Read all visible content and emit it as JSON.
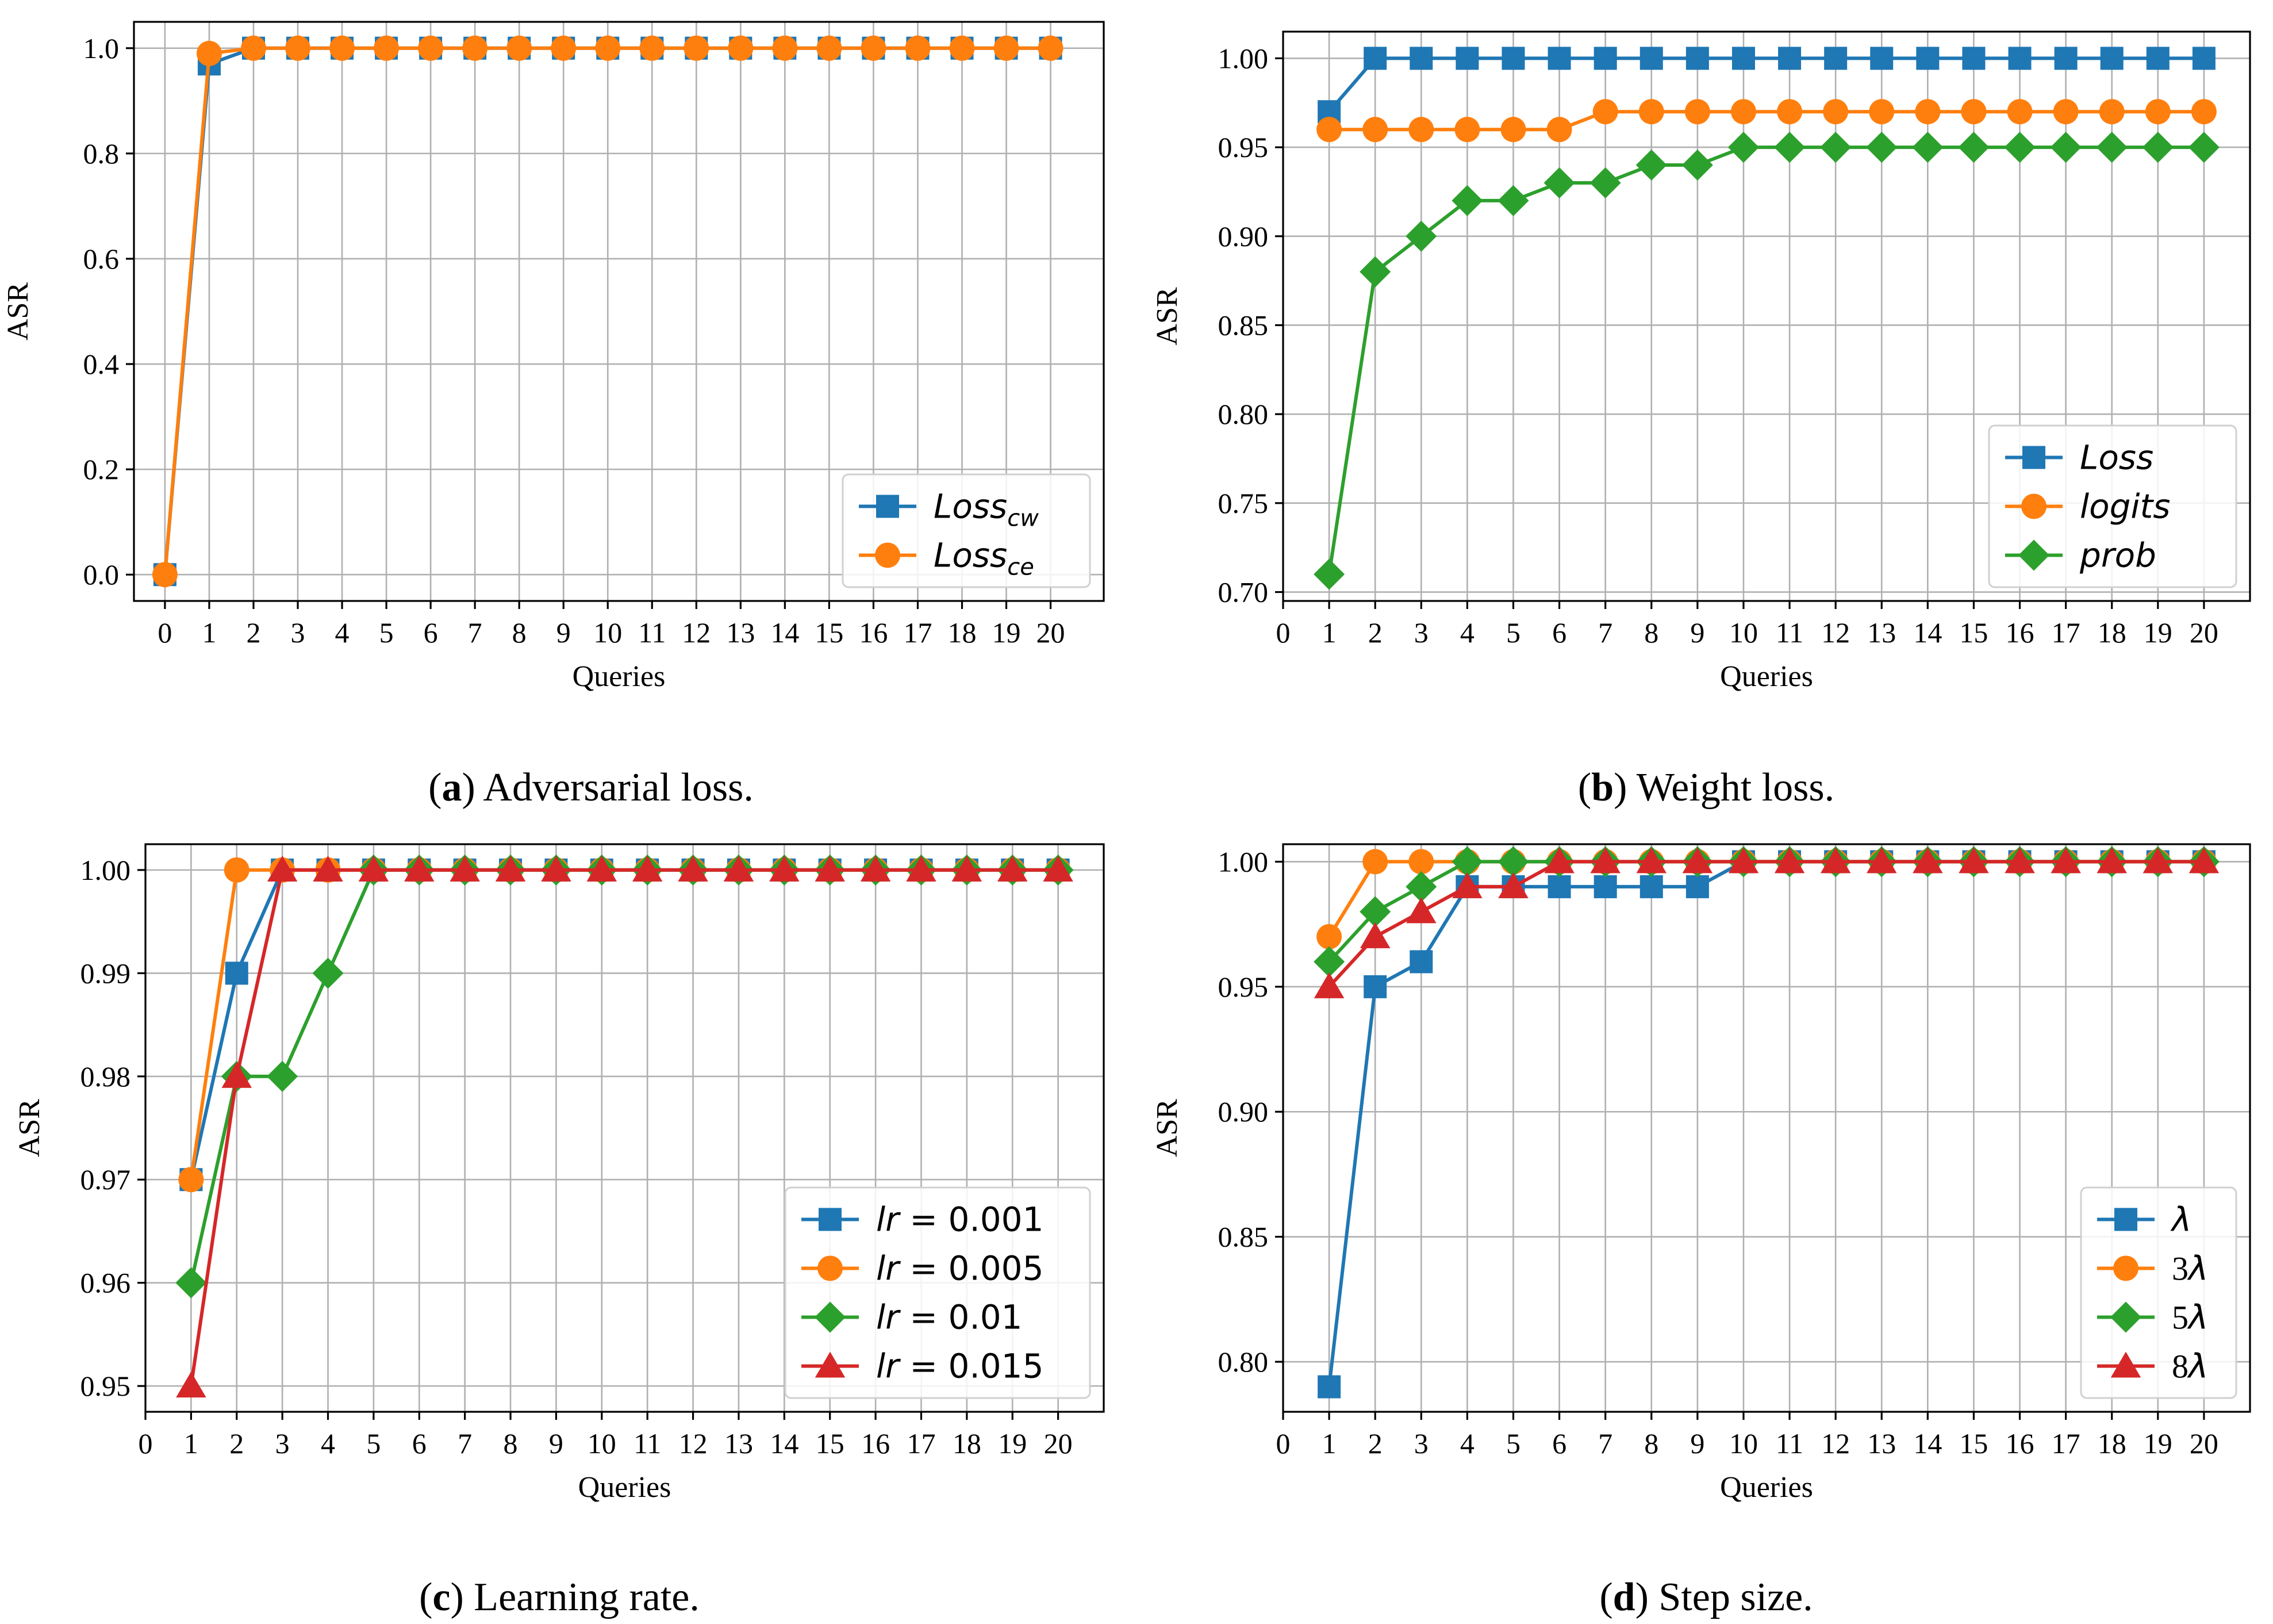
{
  "chart_data": [
    {
      "id": "a",
      "type": "line",
      "caption_letter": "a",
      "caption_text": "Adversarial loss.",
      "xlabel": "Queries",
      "ylabel": "ASR",
      "xlim": [
        -0.7,
        21.2
      ],
      "ylim": [
        -0.05,
        1.05
      ],
      "xticks": [
        0,
        1,
        2,
        3,
        4,
        5,
        6,
        7,
        8,
        9,
        10,
        11,
        12,
        13,
        14,
        15,
        16,
        17,
        18,
        19,
        20
      ],
      "yticks": [
        0.0,
        0.2,
        0.4,
        0.6,
        0.8,
        1.0
      ],
      "ytick_labels": [
        "0.0",
        "0.2",
        "0.4",
        "0.6",
        "0.8",
        "1.0"
      ],
      "x": [
        0,
        1,
        2,
        3,
        4,
        5,
        6,
        7,
        8,
        9,
        10,
        11,
        12,
        13,
        14,
        15,
        16,
        17,
        18,
        19,
        20
      ],
      "legend_position": "lower right",
      "series": [
        {
          "name": "Loss",
          "sub": "cw",
          "color": "#1f77b4",
          "marker": "square",
          "values": [
            0.0,
            0.97,
            1.0,
            1.0,
            1.0,
            1.0,
            1.0,
            1.0,
            1.0,
            1.0,
            1.0,
            1.0,
            1.0,
            1.0,
            1.0,
            1.0,
            1.0,
            1.0,
            1.0,
            1.0,
            1.0
          ]
        },
        {
          "name": "Loss",
          "sub": "ce",
          "color": "#ff7f0e",
          "marker": "circle",
          "values": [
            0.0,
            0.99,
            1.0,
            1.0,
            1.0,
            1.0,
            1.0,
            1.0,
            1.0,
            1.0,
            1.0,
            1.0,
            1.0,
            1.0,
            1.0,
            1.0,
            1.0,
            1.0,
            1.0,
            1.0,
            1.0
          ]
        }
      ]
    },
    {
      "id": "b",
      "type": "line",
      "caption_letter": "b",
      "caption_text": "Weight loss.",
      "xlabel": "Queries",
      "ylabel": "ASR",
      "xlim": [
        0,
        21
      ],
      "ylim": [
        0.695,
        1.015
      ],
      "xticks": [
        0,
        1,
        2,
        3,
        4,
        5,
        6,
        7,
        8,
        9,
        10,
        11,
        12,
        13,
        14,
        15,
        16,
        17,
        18,
        19,
        20
      ],
      "yticks": [
        0.7,
        0.75,
        0.8,
        0.85,
        0.9,
        0.95,
        1.0
      ],
      "ytick_labels": [
        "0.70",
        "0.75",
        "0.80",
        "0.85",
        "0.90",
        "0.95",
        "1.00"
      ],
      "x": [
        1,
        2,
        3,
        4,
        5,
        6,
        7,
        8,
        9,
        10,
        11,
        12,
        13,
        14,
        15,
        16,
        17,
        18,
        19,
        20
      ],
      "legend_position": "lower right",
      "series": [
        {
          "name": "Loss",
          "color": "#1f77b4",
          "marker": "square",
          "values": [
            0.97,
            1.0,
            1.0,
            1.0,
            1.0,
            1.0,
            1.0,
            1.0,
            1.0,
            1.0,
            1.0,
            1.0,
            1.0,
            1.0,
            1.0,
            1.0,
            1.0,
            1.0,
            1.0,
            1.0
          ]
        },
        {
          "name": "logits",
          "color": "#ff7f0e",
          "marker": "circle",
          "values": [
            0.96,
            0.96,
            0.96,
            0.96,
            0.96,
            0.96,
            0.97,
            0.97,
            0.97,
            0.97,
            0.97,
            0.97,
            0.97,
            0.97,
            0.97,
            0.97,
            0.97,
            0.97,
            0.97,
            0.97
          ]
        },
        {
          "name": "prob",
          "color": "#2ca02c",
          "marker": "diamond",
          "values": [
            0.71,
            0.88,
            0.9,
            0.92,
            0.92,
            0.93,
            0.93,
            0.94,
            0.94,
            0.95,
            0.95,
            0.95,
            0.95,
            0.95,
            0.95,
            0.95,
            0.95,
            0.95,
            0.95,
            0.95
          ]
        }
      ]
    },
    {
      "id": "c",
      "type": "line",
      "caption_letter": "c",
      "caption_text": "Learning rate.",
      "xlabel": "Queries",
      "ylabel": "ASR",
      "xlim": [
        0,
        21
      ],
      "ylim": [
        0.9475,
        1.0025
      ],
      "xticks": [
        0,
        1,
        2,
        3,
        4,
        5,
        6,
        7,
        8,
        9,
        10,
        11,
        12,
        13,
        14,
        15,
        16,
        17,
        18,
        19,
        20
      ],
      "yticks": [
        0.95,
        0.96,
        0.97,
        0.98,
        0.99,
        1.0
      ],
      "ytick_labels": [
        "0.95",
        "0.96",
        "0.97",
        "0.98",
        "0.99",
        "1.00"
      ],
      "x": [
        1,
        2,
        3,
        4,
        5,
        6,
        7,
        8,
        9,
        10,
        11,
        12,
        13,
        14,
        15,
        16,
        17,
        18,
        19,
        20
      ],
      "legend_position": "lower right",
      "series": [
        {
          "name": "lr",
          "value": "0.001",
          "color": "#1f77b4",
          "marker": "square",
          "values": [
            0.97,
            0.99,
            1.0,
            1.0,
            1.0,
            1.0,
            1.0,
            1.0,
            1.0,
            1.0,
            1.0,
            1.0,
            1.0,
            1.0,
            1.0,
            1.0,
            1.0,
            1.0,
            1.0,
            1.0
          ]
        },
        {
          "name": "lr",
          "value": "0.005",
          "color": "#ff7f0e",
          "marker": "circle",
          "values": [
            0.97,
            1.0,
            1.0,
            1.0,
            1.0,
            1.0,
            1.0,
            1.0,
            1.0,
            1.0,
            1.0,
            1.0,
            1.0,
            1.0,
            1.0,
            1.0,
            1.0,
            1.0,
            1.0,
            1.0
          ]
        },
        {
          "name": "lr",
          "value": "0.01",
          "color": "#2ca02c",
          "marker": "diamond",
          "values": [
            0.96,
            0.98,
            0.98,
            0.99,
            1.0,
            1.0,
            1.0,
            1.0,
            1.0,
            1.0,
            1.0,
            1.0,
            1.0,
            1.0,
            1.0,
            1.0,
            1.0,
            1.0,
            1.0,
            1.0
          ]
        },
        {
          "name": "lr",
          "value": "0.015",
          "color": "#d62728",
          "marker": "triangle",
          "values": [
            0.95,
            0.98,
            1.0,
            1.0,
            1.0,
            1.0,
            1.0,
            1.0,
            1.0,
            1.0,
            1.0,
            1.0,
            1.0,
            1.0,
            1.0,
            1.0,
            1.0,
            1.0,
            1.0,
            1.0
          ]
        }
      ]
    },
    {
      "id": "d",
      "type": "line",
      "caption_letter": "d",
      "caption_text": "Step size.",
      "xlabel": "Queries",
      "ylabel": "ASR",
      "xlim": [
        0,
        21
      ],
      "ylim": [
        0.78,
        1.007
      ],
      "xticks": [
        0,
        1,
        2,
        3,
        4,
        5,
        6,
        7,
        8,
        9,
        10,
        11,
        12,
        13,
        14,
        15,
        16,
        17,
        18,
        19,
        20
      ],
      "yticks": [
        0.8,
        0.85,
        0.9,
        0.95,
        1.0
      ],
      "ytick_labels": [
        "0.80",
        "0.85",
        "0.90",
        "0.95",
        "1.00"
      ],
      "x": [
        1,
        2,
        3,
        4,
        5,
        6,
        7,
        8,
        9,
        10,
        11,
        12,
        13,
        14,
        15,
        16,
        17,
        18,
        19,
        20
      ],
      "legend_position": "lower right",
      "series": [
        {
          "name": "λ",
          "color": "#1f77b4",
          "marker": "square",
          "values": [
            0.79,
            0.95,
            0.96,
            0.99,
            0.99,
            0.99,
            0.99,
            0.99,
            0.99,
            1.0,
            1.0,
            1.0,
            1.0,
            1.0,
            1.0,
            1.0,
            1.0,
            1.0,
            1.0,
            1.0
          ]
        },
        {
          "name": "λ",
          "coef": "3",
          "color": "#ff7f0e",
          "marker": "circle",
          "values": [
            0.97,
            1.0,
            1.0,
            1.0,
            1.0,
            1.0,
            1.0,
            1.0,
            1.0,
            1.0,
            1.0,
            1.0,
            1.0,
            1.0,
            1.0,
            1.0,
            1.0,
            1.0,
            1.0,
            1.0
          ]
        },
        {
          "name": "λ",
          "coef": "5",
          "color": "#2ca02c",
          "marker": "diamond",
          "values": [
            0.96,
            0.98,
            0.99,
            1.0,
            1.0,
            1.0,
            1.0,
            1.0,
            1.0,
            1.0,
            1.0,
            1.0,
            1.0,
            1.0,
            1.0,
            1.0,
            1.0,
            1.0,
            1.0,
            1.0
          ]
        },
        {
          "name": "λ",
          "coef": "8",
          "color": "#d62728",
          "marker": "triangle",
          "values": [
            0.95,
            0.97,
            0.98,
            0.99,
            0.99,
            1.0,
            1.0,
            1.0,
            1.0,
            1.0,
            1.0,
            1.0,
            1.0,
            1.0,
            1.0,
            1.0,
            1.0,
            1.0,
            1.0,
            1.0
          ]
        }
      ]
    }
  ]
}
